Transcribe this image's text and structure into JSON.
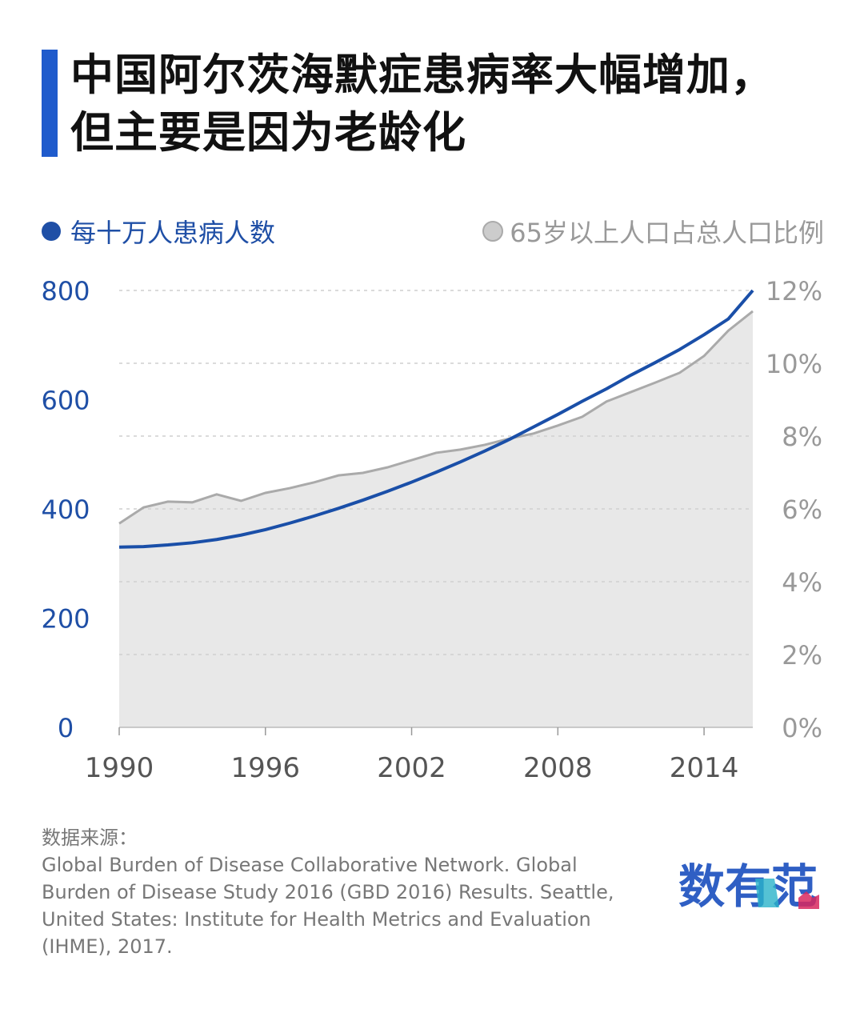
{
  "title_lines": [
    "中国阿尔茨海默症患病率大幅增加，",
    "但主要是因为老龄化"
  ],
  "colors": {
    "accent": "#1f5bcc",
    "blue_series": "#1a4fa8",
    "gray_series": "#aaaaaa",
    "area_fill": "#e8e8e8"
  },
  "chart_data": {
    "type": "line",
    "x": [
      1990,
      1991,
      1992,
      1993,
      1994,
      1995,
      1996,
      1997,
      1998,
      1999,
      2000,
      2001,
      2002,
      2003,
      2004,
      2005,
      2006,
      2007,
      2008,
      2009,
      2010,
      2011,
      2012,
      2013,
      2014,
      2015,
      2016
    ],
    "series": [
      {
        "name": "每十万人患病人数",
        "axis": "left",
        "style": "line",
        "color": "#1a4fa8",
        "values": [
          330,
          331,
          334,
          338,
          344,
          352,
          362,
          374,
          387,
          401,
          416,
          432,
          449,
          467,
          486,
          506,
          527,
          550,
          573,
          597,
          620,
          645,
          668,
          692,
          719,
          748,
          800
        ]
      },
      {
        "name": "65岁以上人口占总人口比例",
        "axis": "right",
        "style": "area",
        "color": "#aaaaaa",
        "values": [
          5.6,
          6.04,
          6.2,
          6.18,
          6.4,
          6.22,
          6.44,
          6.57,
          6.73,
          6.92,
          6.99,
          7.14,
          7.34,
          7.54,
          7.63,
          7.76,
          7.93,
          8.07,
          8.29,
          8.53,
          8.95,
          9.21,
          9.47,
          9.74,
          10.2,
          10.9,
          11.43
        ]
      }
    ],
    "xlim": [
      1990,
      2016
    ],
    "x_ticks": [
      "1990",
      "1996",
      "2002",
      "2008",
      "2014"
    ],
    "y_left": {
      "lim": [
        0,
        800
      ],
      "ticks": [
        "0",
        "200",
        "400",
        "600",
        "800"
      ]
    },
    "y_right": {
      "lim": [
        0,
        12
      ],
      "ticks": [
        "0%",
        "2%",
        "4%",
        "6%",
        "8%",
        "10%",
        "12%"
      ]
    },
    "grid": "horizontal-dashed",
    "legend_placement": "top"
  },
  "source": {
    "label": "数据来源：",
    "text": "Global Burden of Disease Collaborative Network. Global Burden of Disease Study 2016 (GBD 2016) Results. Seattle, United States: Institute for Health Metrics and Evaluation (IHME), 2017."
  },
  "logo_text": "数有范"
}
